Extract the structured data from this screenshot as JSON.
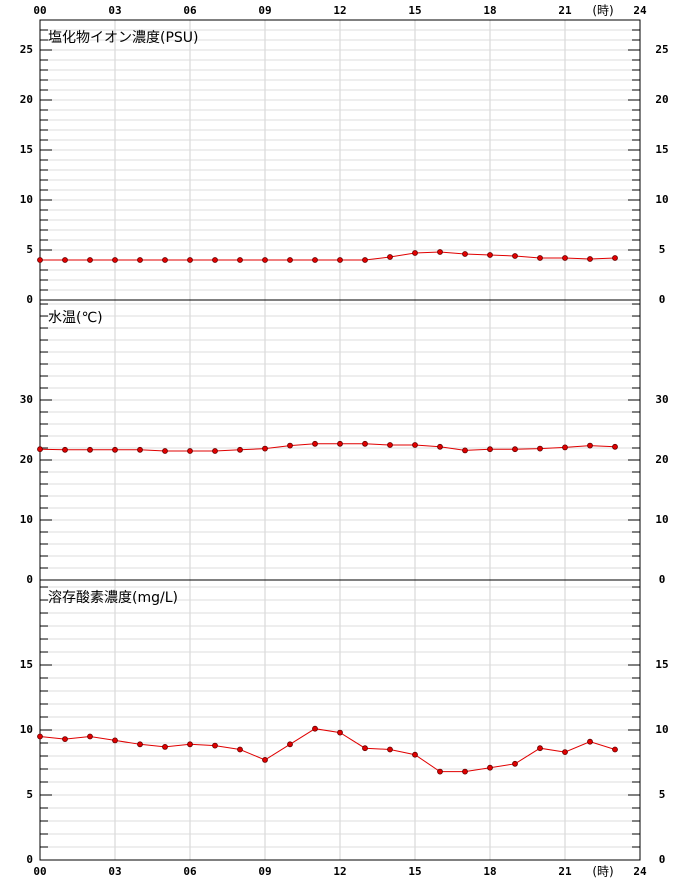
{
  "x_axis": {
    "xlim": [
      0,
      24
    ],
    "xticks": [
      {
        "value": 0,
        "label": "00"
      },
      {
        "value": 3,
        "label": "03"
      },
      {
        "value": 6,
        "label": "06"
      },
      {
        "value": 9,
        "label": "09"
      },
      12,
      15,
      18,
      21,
      24
    ],
    "unit_label": "(時)"
  },
  "chart_data": [
    {
      "type": "line",
      "title": "塩化物イオン濃度(PSU)",
      "color": "#e00000",
      "x": [
        0,
        1,
        2,
        3,
        4,
        5,
        6,
        7,
        8,
        9,
        10,
        11,
        12,
        13,
        14,
        15,
        16,
        17,
        18,
        19,
        20,
        21,
        22,
        23
      ],
      "values": [
        4.0,
        4.0,
        4.0,
        4.0,
        4.0,
        4.0,
        4.0,
        4.0,
        4.0,
        4.0,
        4.0,
        4.0,
        4.0,
        4.0,
        4.3,
        4.7,
        4.8,
        4.6,
        4.5,
        4.4,
        4.2,
        4.2,
        4.1,
        4.2
      ],
      "ylim": [
        0,
        28
      ],
      "yticks": [
        0,
        5,
        10,
        15,
        20,
        25
      ],
      "minor_tick_step": 1,
      "grid": true
    },
    {
      "type": "line",
      "title": "水温(℃)",
      "color": "#e00000",
      "x": [
        0,
        1,
        2,
        3,
        4,
        5,
        6,
        7,
        8,
        9,
        10,
        11,
        12,
        13,
        14,
        15,
        16,
        17,
        18,
        19,
        20,
        21,
        22,
        23
      ],
      "values": [
        21.8,
        21.7,
        21.7,
        21.7,
        21.7,
        21.5,
        21.5,
        21.5,
        21.7,
        21.9,
        22.4,
        22.7,
        22.7,
        22.7,
        22.5,
        22.5,
        22.2,
        21.6,
        21.8,
        21.8,
        21.9,
        22.1,
        22.4,
        22.2
      ],
      "ylim": [
        0,
        46.67
      ],
      "yticks": [
        0,
        10,
        20,
        30
      ],
      "minor_tick_step": 2,
      "grid": true
    },
    {
      "type": "line",
      "title": "溶存酸素濃度(mg/L)",
      "color": "#e00000",
      "x": [
        0,
        1,
        2,
        3,
        4,
        5,
        6,
        7,
        8,
        9,
        10,
        11,
        12,
        13,
        14,
        15,
        16,
        17,
        18,
        19,
        20,
        21,
        22,
        23
      ],
      "values": [
        9.5,
        9.3,
        9.5,
        9.2,
        8.9,
        8.7,
        8.9,
        8.8,
        8.5,
        7.7,
        8.9,
        10.1,
        9.8,
        8.6,
        8.5,
        8.1,
        6.8,
        6.8,
        7.1,
        7.4,
        8.6,
        8.3,
        9.1,
        8.5
      ],
      "ylim": [
        0,
        21.54
      ],
      "yticks": [
        0,
        5,
        10,
        15
      ],
      "minor_tick_step": 1,
      "grid": true
    }
  ]
}
